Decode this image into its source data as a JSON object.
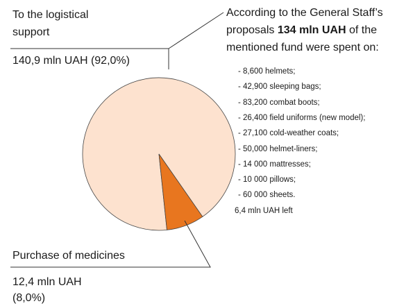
{
  "chart_data": {
    "type": "pie",
    "categories": [
      "To the logistical support",
      "Purchase of medicines"
    ],
    "values": [
      92.0,
      8.0
    ],
    "value_labels": [
      "140,9 mln UAH (92,0%)",
      "12,4 mln UAH (8,0%)"
    ],
    "colors": [
      "#fde2cf",
      "#e8761f"
    ],
    "annotation": {
      "text_before": "According to the General Staff’s proposals",
      "bold": "134 mln UAH",
      "text_after": "of the mentioned fund were spent on:",
      "items": [
        "- 8,600 helmets;",
        "- 42,900 sleeping bags;",
        "- 83,200 combat boots;",
        "- 26,400 field uniforms (new model);",
        "- 27,100 cold-weather coats;",
        "- 50,000 helmet-liners;",
        "- 14 000 mattresses;",
        "- 10 000 pillows;",
        "- 60 000 sheets."
      ],
      "footer": "6,4 mln UAH left"
    }
  }
}
